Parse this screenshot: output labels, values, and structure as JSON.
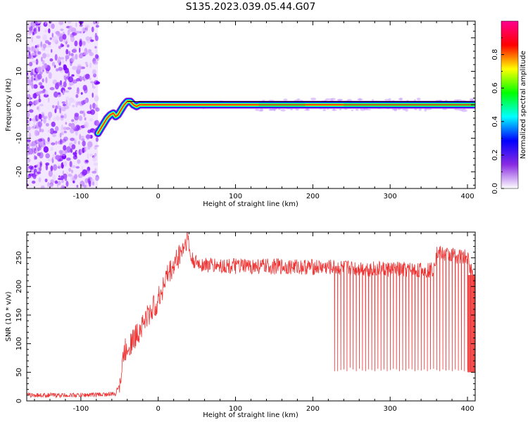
{
  "title": "S135.2023.039.05.44.G07",
  "chart_data": [
    {
      "type": "heatmap",
      "xlabel": "Height of straight line (km)",
      "ylabel": "Frequency (Hz)",
      "xlim": [
        -170,
        410
      ],
      "ylim": [
        -25,
        25
      ],
      "xticks": [
        -100,
        0,
        100,
        200,
        300,
        400
      ],
      "yticks": [
        -20,
        -10,
        0,
        10,
        20
      ],
      "colorbar": {
        "label": "Normalized spectral amplitude",
        "range": [
          0,
          1
        ],
        "ticks": [
          0.0,
          0.2,
          0.4,
          0.6,
          0.8
        ],
        "colors": [
          "#ffffff",
          "#8a2be2",
          "#0000ff",
          "#00ffff",
          "#00ff00",
          "#ffff00",
          "#ff0000",
          "#ff0090"
        ]
      },
      "noise_region": {
        "x": [
          -170,
          -78
        ],
        "y": [
          -25,
          25
        ]
      },
      "ridge": {
        "x": [
          -78,
          -74,
          -70,
          -66,
          -62,
          -58,
          -55,
          -52,
          -48,
          -44,
          -40,
          -36,
          -32,
          -28,
          -24,
          -20,
          0,
          100,
          200,
          300,
          410
        ],
        "y": [
          -8.5,
          -7,
          -5.5,
          -4,
          -3,
          -2.5,
          -3.5,
          -3,
          -1.5,
          0,
          1,
          1,
          0,
          -0.5,
          0,
          0,
          0,
          0,
          0,
          0,
          0
        ]
      }
    },
    {
      "type": "line",
      "xlabel": "Height of straight line (km)",
      "ylabel": "SNR (10 * v/v)",
      "xlim": [
        -170,
        410
      ],
      "ylim": [
        0,
        295
      ],
      "xticks": [
        -100,
        0,
        100,
        200,
        300,
        400
      ],
      "yticks": [
        0,
        50,
        100,
        150,
        200,
        250
      ],
      "line_color": "#ee3333",
      "series": [
        {
          "x": [
            -170,
            -100,
            -55,
            -48,
            -45,
            -40,
            -30,
            -20,
            -10,
            0,
            5,
            10,
            15,
            20,
            25,
            30,
            35,
            38,
            42,
            50,
            60,
            80,
            100,
            150,
            200,
            250,
            300,
            340,
            355,
            360,
            380,
            400,
            410
          ],
          "y": [
            10,
            10,
            12,
            40,
            80,
            95,
            110,
            135,
            155,
            175,
            195,
            215,
            225,
            235,
            250,
            262,
            275,
            290,
            248,
            240,
            238,
            236,
            235,
            235,
            234,
            232,
            230,
            228,
            230,
            258,
            255,
            250,
            205
          ]
        }
      ],
      "dropouts": {
        "x": [
          228,
          232,
          236,
          240,
          244,
          248,
          252,
          256,
          260,
          264,
          268,
          272,
          276,
          280,
          284,
          288,
          292,
          296,
          300,
          304,
          308,
          312,
          316,
          320,
          324,
          328,
          332,
          336,
          340,
          344,
          348,
          352,
          356,
          360,
          364,
          368,
          372,
          376,
          380,
          384,
          388,
          392,
          396,
          400,
          404,
          408
        ],
        "y": [
          52,
          52,
          54,
          55,
          52,
          58,
          55,
          52,
          56,
          53,
          52,
          55,
          54,
          52,
          56,
          53,
          55,
          52,
          54,
          56,
          55,
          52,
          54,
          53,
          56,
          55,
          52,
          54,
          53,
          55,
          52,
          55,
          56,
          54,
          52,
          55,
          53,
          54,
          52,
          55,
          53,
          54,
          52,
          54,
          53,
          52
        ]
      }
    }
  ]
}
